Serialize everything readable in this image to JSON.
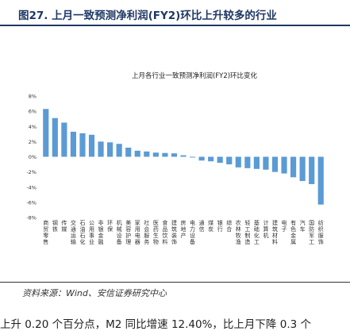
{
  "figure": {
    "title": "图27. 上月一致预测净利润(FY2)环比上升较多的行业",
    "source": "资料来源：Wind、安信证券研究中心",
    "cut_text": "上升 0.20 个百分点，M2 同比增速 12.40%，比上月下降 0.3 个"
  },
  "chart_data": {
    "type": "bar",
    "title": "上月各行业一致预测净利润(FY2)环比变化",
    "xlabel": "",
    "ylabel": "",
    "ylim": [
      -8,
      8
    ],
    "yticks": [
      "-8%",
      "-6%",
      "-4%",
      "-2%",
      "0%",
      "2%",
      "4%",
      "6%",
      "8%"
    ],
    "grid": false,
    "bar_color": "#5b9bd5",
    "categories": [
      "商贸零售",
      "钢铁",
      "传媒",
      "交通运输",
      "石油石化",
      "公用事业",
      "非银金融",
      "环保",
      "机械设备",
      "美容护理",
      "家用电器",
      "社会服务",
      "医药生物",
      "食品饮料",
      "建筑装饰",
      "房地产",
      "电力设备",
      "通信",
      "煤炭",
      "银行",
      "综合",
      "农林牧渔",
      "轻工制造",
      "基础化工",
      "计算机",
      "建筑材料",
      "电子",
      "有色金属",
      "汽车",
      "国防军工",
      "纺织服饰"
    ],
    "values": [
      6.3,
      5.1,
      4.5,
      3.3,
      3.1,
      2.9,
      2.0,
      1.9,
      1.7,
      1.2,
      0.8,
      0.7,
      0.55,
      0.5,
      0.45,
      0.2,
      -0.1,
      -0.5,
      -0.6,
      -0.8,
      -1.0,
      -1.4,
      -1.5,
      -1.6,
      -1.7,
      -2.0,
      -2.2,
      -2.7,
      -3.2,
      -3.6,
      -6.3
    ]
  }
}
